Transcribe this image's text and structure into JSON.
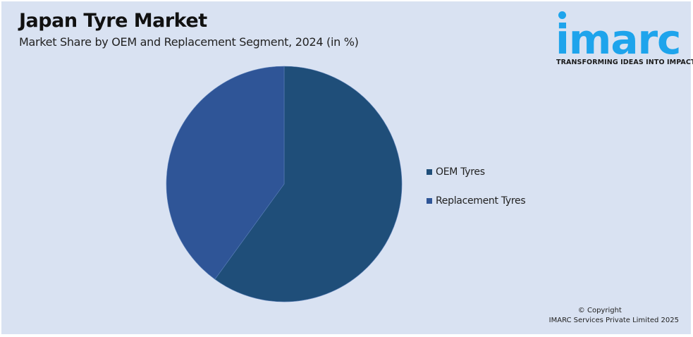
{
  "header": {
    "title": "Japan Tyre Market",
    "subtitle": "Market Share by OEM and Replacement Segment, 2024 (in %)"
  },
  "logo": {
    "wordmark": "imarc",
    "tagline": "TRANSFORMING IDEAS INTO IMPACT",
    "color": "#1ea4ec"
  },
  "legend": {
    "items": [
      {
        "label": "OEM Tyres",
        "color": "#1f4e79"
      },
      {
        "label": "Replacement Tyres",
        "color": "#2f5597"
      }
    ]
  },
  "footer": {
    "copyright_line1": "© Copyright",
    "copyright_line2": "IMARC Services Private Limited 2025"
  },
  "chart_data": {
    "type": "pie",
    "title": "Japan Tyre Market",
    "subtitle": "Market Share by OEM and Replacement Segment, 2024 (in %)",
    "categories": [
      "OEM Tyres",
      "Replacement Tyres"
    ],
    "values": [
      60,
      40
    ],
    "colors": [
      "#1f4e79",
      "#2f5597"
    ],
    "start_angle_deg": 0,
    "direction": "clockwise",
    "legend_position": "right",
    "data_labels": false
  }
}
